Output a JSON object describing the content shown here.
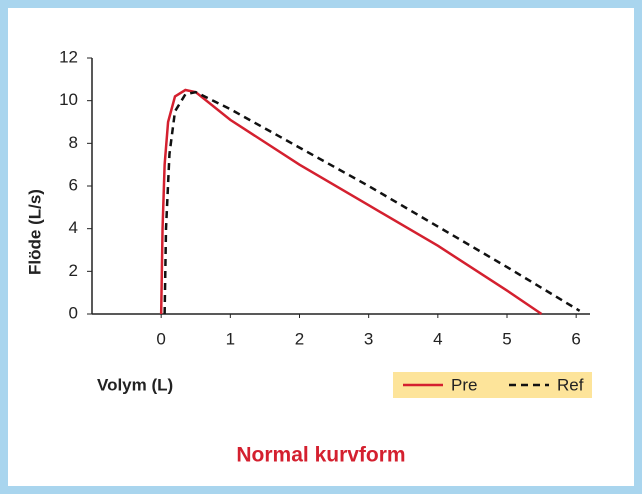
{
  "chart_data": {
    "type": "line",
    "title": "Normal kurvform",
    "x_label": "Volym (L)",
    "y_label": "Flöde (L/s)",
    "xlim": [
      -1,
      6.2
    ],
    "ylim": [
      0,
      12
    ],
    "xticks": [
      0,
      1,
      2,
      3,
      4,
      5,
      6
    ],
    "yticks": [
      0,
      2,
      4,
      6,
      8,
      10,
      12
    ],
    "series": [
      {
        "name": "Pre",
        "color": "#d4202f",
        "linestyle": "solid",
        "x": [
          0,
          0.02,
          0.05,
          0.1,
          0.2,
          0.35,
          0.5,
          1,
          2,
          3,
          4,
          5,
          5.5
        ],
        "values": [
          0,
          4,
          7,
          9,
          10.2,
          10.5,
          10.4,
          9.1,
          7,
          5.1,
          3.2,
          1.1,
          0
        ]
      },
      {
        "name": "Ref",
        "color": "#111111",
        "linestyle": "dashed",
        "x": [
          0.05,
          0.07,
          0.12,
          0.2,
          0.35,
          0.5,
          1,
          2,
          3,
          4,
          5,
          6.05
        ],
        "values": [
          0,
          4,
          7.5,
          9.5,
          10.3,
          10.4,
          9.6,
          7.8,
          6,
          4.1,
          2.2,
          0.15
        ]
      }
    ]
  }
}
